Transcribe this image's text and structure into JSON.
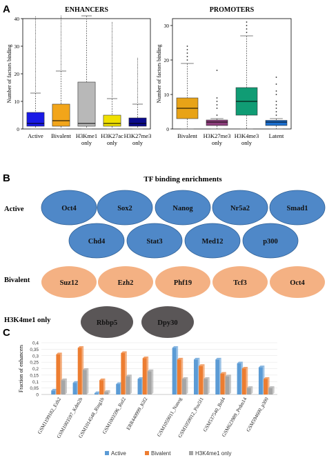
{
  "panels": {
    "a": {
      "label": "A"
    },
    "b": {
      "label": "B",
      "title": "TF binding enrichments"
    },
    "c": {
      "label": "C"
    }
  },
  "panel_b": {
    "rows": [
      {
        "name": "Active",
        "color": "#4f88c8",
        "items": [
          "Oct4",
          "Sox2",
          "Nanog",
          "Nr5a2",
          "Smad1",
          "Chd4",
          "Stat3",
          "Med12",
          "p300"
        ]
      },
      {
        "name": "Bivalent",
        "color": "#f4b183",
        "items": [
          "Suz12",
          "Ezh2",
          "Phf19",
          "Tcf3",
          "Oct4"
        ]
      },
      {
        "name": "H3K4me1 only",
        "color": "#5a5657",
        "items": [
          "Rbbp5",
          "Dpy30"
        ]
      }
    ]
  },
  "chart_data": [
    {
      "type": "box",
      "title": "ENHANCERS",
      "ylabel": "Number of factors binding",
      "ylim": [
        0,
        40
      ],
      "yticks": [
        0,
        10,
        20,
        30,
        40
      ],
      "categories": [
        "Active",
        "Bivalent",
        "H3Kme1 only",
        "H3K27ac only",
        "H3K27me3 only"
      ],
      "colors": [
        "#1a1ae6",
        "#f2a51a",
        "#b8b8b8",
        "#f0e000",
        "#0a0a8c"
      ],
      "boxes": [
        {
          "q1": 1,
          "median": 2,
          "q3": 6,
          "whisker_low": 0,
          "whisker_high": 13,
          "outlier_max": 41
        },
        {
          "q1": 1,
          "median": 3,
          "q3": 9,
          "whisker_low": 0,
          "whisker_high": 21,
          "outlier_max": 41
        },
        {
          "q1": 1,
          "median": 2,
          "q3": 17,
          "whisker_low": 0,
          "whisker_high": 41,
          "outlier_max": 41
        },
        {
          "q1": 1,
          "median": 2,
          "q3": 5,
          "whisker_low": 0,
          "whisker_high": 11,
          "outlier_max": 39
        },
        {
          "q1": 1,
          "median": 2,
          "q3": 4,
          "whisker_low": 0,
          "whisker_high": 9,
          "outlier_max": 26
        }
      ]
    },
    {
      "type": "box",
      "title": "PROMOTERS",
      "ylabel": "Number of factors binding",
      "ylim": [
        0,
        32
      ],
      "yticks": [
        0,
        10,
        20,
        30
      ],
      "categories": [
        "Bivalent",
        "H3K27me3 only",
        "H3K4me3 only",
        "Latent"
      ],
      "colors": [
        "#e8a317",
        "#8e3f7d",
        "#109c74",
        "#1c6fcf"
      ],
      "boxes": [
        {
          "q1": 3,
          "median": 6,
          "q3": 9,
          "whisker_low": 0,
          "whisker_high": 19,
          "outliers": [
            20,
            21,
            22,
            23,
            24
          ]
        },
        {
          "q1": 1,
          "median": 2,
          "q3": 2.6,
          "whisker_low": 0,
          "whisker_high": 3,
          "outliers": [
            4,
            6,
            7,
            8,
            9,
            17
          ]
        },
        {
          "q1": 4,
          "median": 8,
          "q3": 12,
          "whisker_low": 0,
          "whisker_high": 27,
          "outliers": [
            28,
            29,
            30,
            31
          ]
        },
        {
          "q1": 1,
          "median": 2,
          "q3": 2.5,
          "whisker_low": 0,
          "whisker_high": 3,
          "outliers": [
            4,
            5,
            6,
            7,
            8,
            10,
            11,
            13,
            15
          ]
        }
      ]
    },
    {
      "type": "bar",
      "ylabel": "Fraction of enhancers",
      "ylim": [
        0,
        0.4
      ],
      "yticks": [
        "0",
        "0,05",
        "0,1",
        "0,15",
        "0,2",
        "0,25",
        "0,3",
        "0,35",
        "0,4"
      ],
      "ytick_values": [
        0,
        0.05,
        0.1,
        0.15,
        0.2,
        0.25,
        0.3,
        0.35,
        0.4
      ],
      "categories": [
        "GSM1199182_Ezh2",
        "GSM1003597_Kdm2b",
        "GSM1014548_Ring1b",
        "GSM1003596_Rnf2",
        "ERR440999_Klf2",
        "GSM1059011_Nanog",
        "GSM1059012_Pou5f1",
        "GSM537540_Brd4",
        "GSM623989_Prdm14",
        "GSM594600_p300"
      ],
      "groups_gap_after": 4,
      "series": [
        {
          "name": "Active",
          "color": "#5b9bd5",
          "values": [
            0.03,
            0.09,
            0.01,
            0.08,
            0.12,
            0.36,
            0.27,
            0.27,
            0.24,
            0.21
          ]
        },
        {
          "name": "Bivalent",
          "color": "#ed7d31",
          "values": [
            0.31,
            0.36,
            0.11,
            0.32,
            0.28,
            0.27,
            0.22,
            0.16,
            0.2,
            0.12
          ]
        },
        {
          "name": "H3K4me1 only",
          "color": "#a5a5a5",
          "values": [
            0.11,
            0.19,
            0.02,
            0.14,
            0.18,
            0.12,
            0.12,
            0.14,
            0.05,
            0.05
          ]
        }
      ]
    }
  ]
}
